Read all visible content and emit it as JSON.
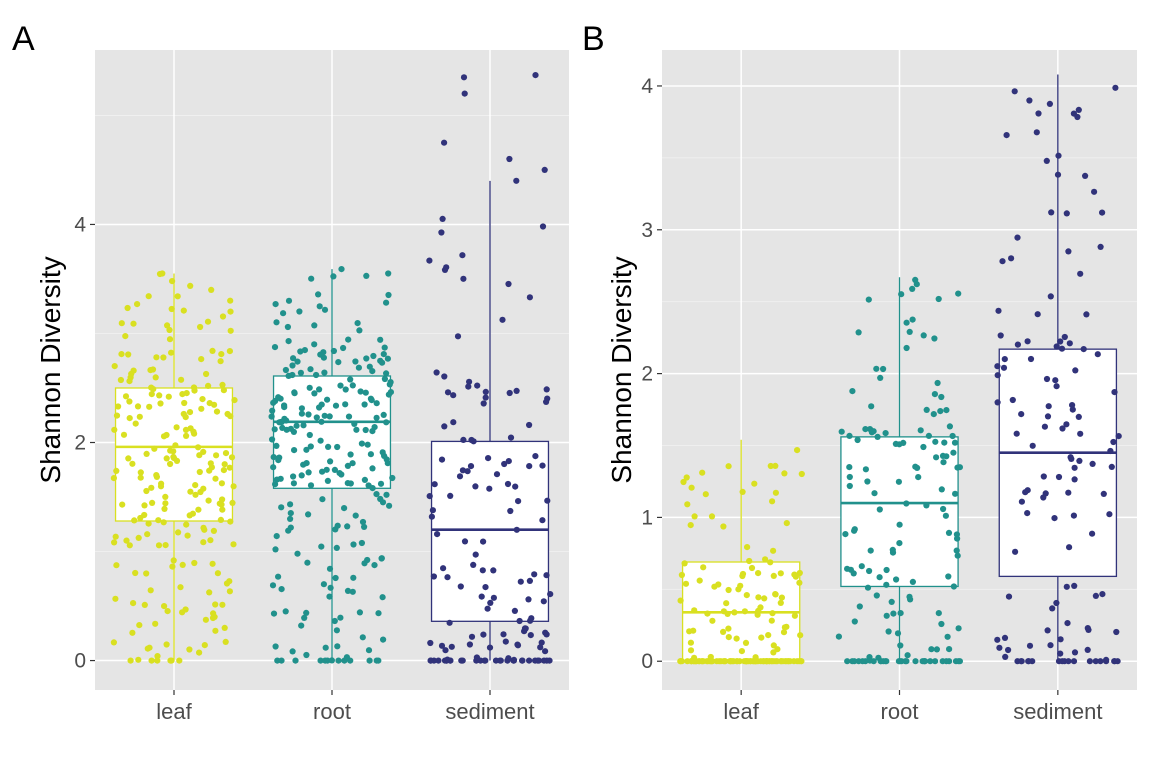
{
  "chart_data": [
    {
      "panel_label": "A",
      "type": "boxplot-jitter",
      "ylabel": "Shannon Diversity",
      "xlabel": "",
      "categories": [
        "leaf",
        "root",
        "sediment"
      ],
      "ylim": [
        -0.27,
        5.6
      ],
      "yticks": [
        0,
        2,
        4
      ],
      "grid": true,
      "colors": {
        "leaf": "#d9e021",
        "root": "#21918c",
        "sediment": "#31337a"
      },
      "boxes": [
        {
          "category": "leaf",
          "whisker_low": 0,
          "q1": 1.28,
          "median": 1.96,
          "q3": 2.5,
          "whisker_high": 3.55
        },
        {
          "category": "root",
          "whisker_low": 0,
          "q1": 1.58,
          "median": 2.19,
          "q3": 2.61,
          "whisker_high": 3.59
        },
        {
          "category": "sediment",
          "whisker_low": 0,
          "q1": 0.36,
          "median": 1.2,
          "q3": 2.01,
          "whisker_high": 4.4
        }
      ],
      "jitter": {
        "leaf": {
          "n": 220,
          "zeros": 6,
          "high_outliers": [
            3.4,
            3.48,
            3.55
          ]
        },
        "root": {
          "n": 240,
          "zeros": 12,
          "high_outliers": [
            3.55,
            3.59
          ]
        },
        "sediment": {
          "n": 150,
          "zeros": 30,
          "high_outliers": [
            4.4,
            4.5,
            4.6,
            4.75,
            5.2,
            5.35,
            5.37
          ]
        }
      }
    },
    {
      "panel_label": "B",
      "type": "boxplot-jitter",
      "ylabel": "Shannon Diversity",
      "xlabel": "",
      "categories": [
        "leaf",
        "root",
        "sediment"
      ],
      "ylim": [
        -0.2,
        4.25
      ],
      "yticks": [
        0,
        1,
        2,
        3,
        4
      ],
      "grid": true,
      "colors": {
        "leaf": "#d9e021",
        "root": "#21918c",
        "sediment": "#31337a"
      },
      "boxes": [
        {
          "category": "leaf",
          "whisker_low": 0,
          "q1": 0,
          "median": 0.34,
          "q3": 0.69,
          "whisker_high": 1.54
        },
        {
          "category": "root",
          "whisker_low": 0,
          "q1": 0.52,
          "median": 1.1,
          "q3": 1.56,
          "whisker_high": 2.67
        },
        {
          "category": "sediment",
          "whisker_low": 0,
          "q1": 0.59,
          "median": 1.45,
          "q3": 2.17,
          "whisker_high": 4.08
        }
      ],
      "jitter": {
        "leaf": {
          "n": 170,
          "zeros": 45,
          "high_outliers": []
        },
        "root": {
          "n": 150,
          "zeros": 30,
          "high_outliers": []
        },
        "sediment": {
          "n": 130,
          "zeros": 18,
          "high_outliers": []
        }
      }
    }
  ]
}
